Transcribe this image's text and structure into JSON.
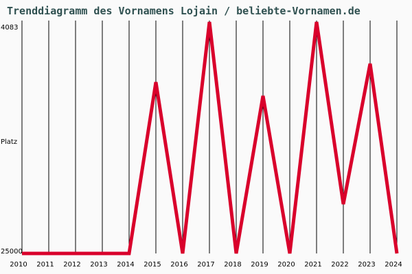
{
  "chart_data": {
    "type": "line",
    "title": "Trenddiagramm des Vornamens Lojain / beliebte-Vornamen.de",
    "xlabel": "",
    "ylabel": "Platz",
    "y_tick_labels": [
      "4083",
      "25000"
    ],
    "y_inverted": true,
    "ylim": [
      25000,
      4083
    ],
    "grid": "vertical",
    "categories": [
      "2010",
      "2011",
      "2012",
      "2013",
      "2014",
      "2015",
      "2016",
      "2017",
      "2018",
      "2019",
      "2020",
      "2021",
      "2022",
      "2023",
      "2024"
    ],
    "series": [
      {
        "name": "Lojain",
        "color": "#d9002b",
        "values": [
          25000,
          25000,
          25000,
          25000,
          25000,
          9150,
          25000,
          4083,
          25000,
          10420,
          25000,
          4083,
          20440,
          7440,
          25000
        ]
      }
    ]
  },
  "labels": {
    "title": "Trenddiagramm des Vornamens Lojain / beliebte-Vornamen.de",
    "y_top": "4083",
    "y_mid": "Platz",
    "y_bottom": "25000",
    "years": [
      "2010",
      "2011",
      "2012",
      "2013",
      "2014",
      "2015",
      "2016",
      "2017",
      "2018",
      "2019",
      "2020",
      "2021",
      "2022",
      "2023",
      "2024"
    ]
  },
  "colors": {
    "line": "#d9002b",
    "title": "#2f5050",
    "grid": "#000000",
    "background": "#fafafa"
  }
}
